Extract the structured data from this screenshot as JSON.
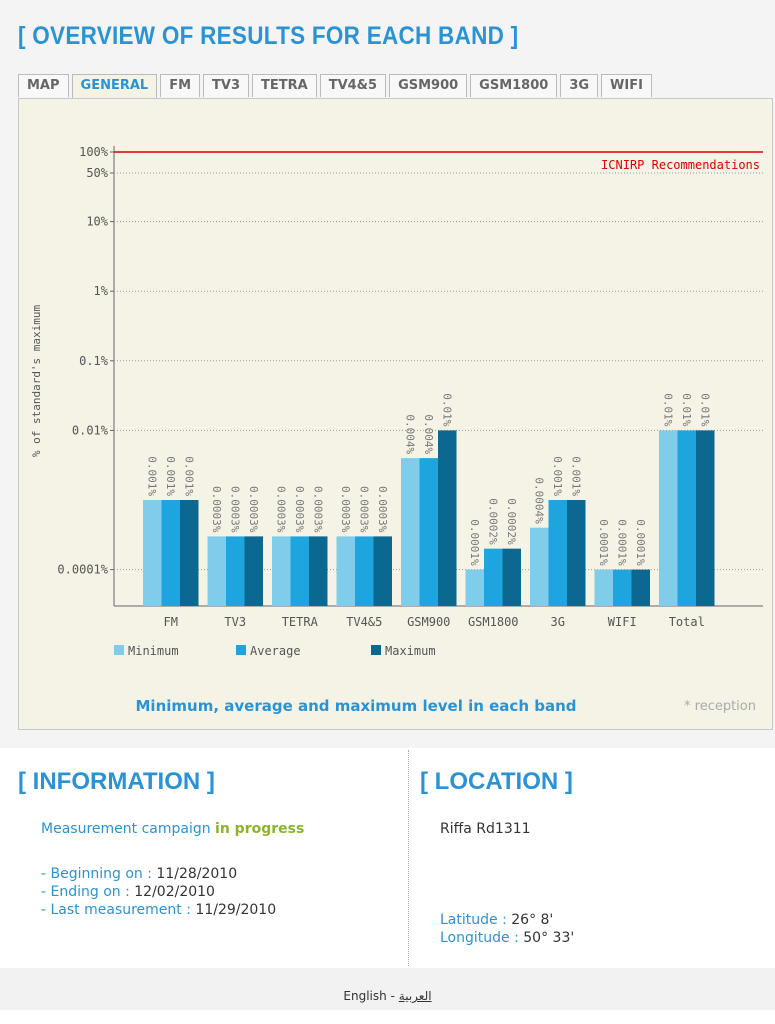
{
  "header": {
    "title": "[ OVERVIEW OF RESULTS FOR EACH BAND ]"
  },
  "tabs": [
    "MAP",
    "GENERAL",
    "FM",
    "TV3",
    "TETRA",
    "TV4&5",
    "GSM900",
    "GSM1800",
    "3G",
    "WIFI"
  ],
  "active_tab": "GENERAL",
  "chart_data": {
    "type": "bar",
    "y_label": "% of standard's maximum",
    "log_scale": true,
    "grid": true,
    "categories": [
      "FM",
      "TV3",
      "TETRA",
      "TV4&5",
      "GSM900",
      "GSM1800",
      "3G",
      "WIFI",
      "Total"
    ],
    "series": [
      {
        "name": "Minimum",
        "color": "#7fcdea",
        "values": [
          0.001,
          0.0003,
          0.0003,
          0.0003,
          0.004,
          0.0001,
          0.0004,
          0.0001,
          0.01
        ],
        "value_labels": [
          "0.001%",
          "0.0003%",
          "0.0003%",
          "0.0003%",
          "0.004%",
          "0.0001%",
          "0.0004%",
          "0.0001%",
          "0.01%"
        ]
      },
      {
        "name": "Average",
        "color": "#1ea5e0",
        "values": [
          0.001,
          0.0003,
          0.0003,
          0.0003,
          0.004,
          0.0002,
          0.001,
          0.0001,
          0.01
        ],
        "value_labels": [
          "0.001%",
          "0.0003%",
          "0.0003%",
          "0.0003%",
          "0.004%",
          "0.0002%",
          "0.001%",
          "0.0001%",
          "0.01%"
        ]
      },
      {
        "name": "Maximum",
        "color": "#0b6890",
        "values": [
          0.001,
          0.0003,
          0.0003,
          0.0003,
          0.01,
          0.0002,
          0.001,
          0.0001,
          0.01
        ],
        "value_labels": [
          "0.001%",
          "0.0003%",
          "0.0003%",
          "0.0003%",
          "0.01%",
          "0.0002%",
          "0.001%",
          "0.0001%",
          "0.01%"
        ]
      }
    ],
    "ylim": [
      3e-05,
      100
    ],
    "yticks": [
      {
        "value": 100,
        "label": "100%"
      },
      {
        "value": 50,
        "label": "50%"
      },
      {
        "value": 10,
        "label": "10%"
      },
      {
        "value": 1,
        "label": "1%"
      },
      {
        "value": 0.1,
        "label": "0.1%"
      },
      {
        "value": 0.01,
        "label": "0.01%"
      },
      {
        "value": 0.0001,
        "label": "0.0001%"
      }
    ],
    "reference_line": {
      "value": 100,
      "label": "ICNIRP Recommendations",
      "color": "#e00000"
    },
    "caption": "Minimum, average and maximum level in each band",
    "note": "* reception"
  },
  "information": {
    "title": "[ INFORMATION ]",
    "campaign": "Measurement campaign",
    "status": "in progress",
    "rows": [
      {
        "label": "- Beginning on :",
        "value": "11/28/2010"
      },
      {
        "label": "- Ending on :",
        "value": "12/02/2010"
      },
      {
        "label": "- Last measurement :",
        "value": "11/29/2010"
      }
    ]
  },
  "location": {
    "title": "[ LOCATION ]",
    "place": "Riffa Rd1311",
    "rows": [
      {
        "label": "Latitude :",
        "value": "26° 8'"
      },
      {
        "label": "Longitude :",
        "value": "50° 33'"
      }
    ]
  },
  "footer": {
    "languages": [
      "English",
      "العربية"
    ],
    "separator": "-"
  }
}
